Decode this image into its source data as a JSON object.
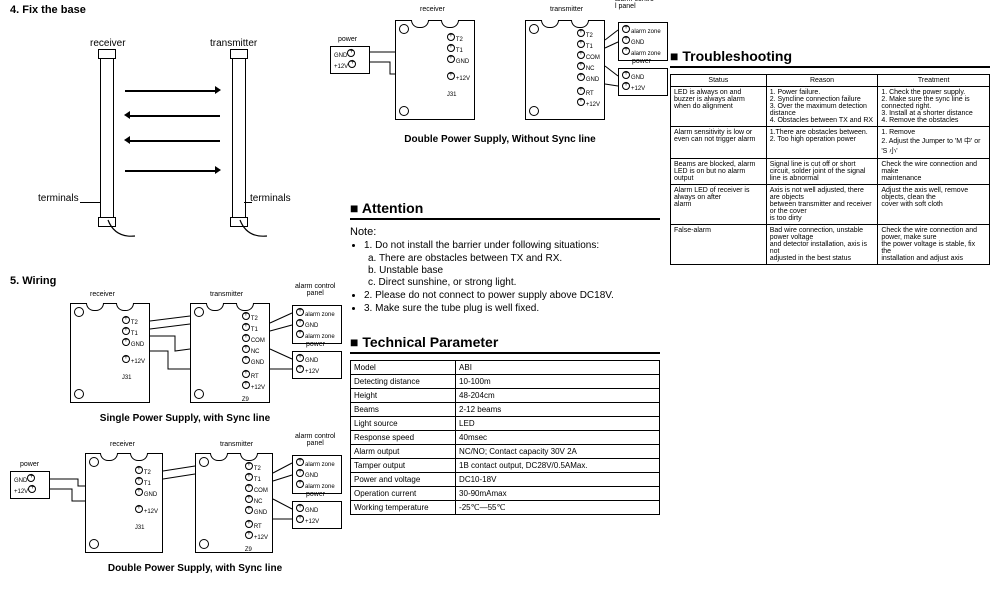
{
  "left": {
    "sec4_title": "4. Fix the base",
    "receiver": "receiver",
    "transmitter": "transmitter",
    "terminals": "terminals",
    "sec5_title": "5. Wiring",
    "cap1": "Single Power Supply, with Sync line",
    "cap2": "Double Power Supply, with Sync line",
    "alarm_control": "alarm control\npanel",
    "power": "power",
    "labels": {
      "t2": "T2",
      "t1": "T1",
      "gnd": "GND",
      "p12v": "+12V",
      "j31": "J31",
      "com": "COM",
      "nc": "NC",
      "rt": "RT",
      "z9": "Z9",
      "alarmzone": "alarm zone"
    }
  },
  "mid": {
    "cap_top": "Double Power Supply,  Without Sync line",
    "receiver": "receiver",
    "transmitter": "transmitter",
    "alarm_panel": "alarm contro\nl panel",
    "power": "power",
    "attention_title": "Attention",
    "note_label": "Note:",
    "notes": [
      "1. Do not install the barrier under following situations:",
      "2. Please do not connect to power supply above DC18V.",
      "3. Make sure the tube plug is well fixed."
    ],
    "subnotes": [
      "a. There are obstacles between TX and RX.",
      "b. Unstable base",
      "c. Direct sunshine, or strong light."
    ],
    "tech_title": "Technical Parameter",
    "params": [
      [
        "Model",
        "ABI"
      ],
      [
        "Detecting distance",
        "10-100m"
      ],
      [
        "Height",
        "48-204cm"
      ],
      [
        "Beams",
        "2-12 beams"
      ],
      [
        "Light source",
        "LED"
      ],
      [
        "Response speed",
        "40msec"
      ],
      [
        "Alarm output",
        "NC/NO; Contact capacity 30V 2A"
      ],
      [
        "Tamper output",
        "1B contact output,  DC28V/0.5AMax."
      ],
      [
        "Power and voltage",
        "DC10-18V"
      ],
      [
        "Operation current",
        "30-90mAmax"
      ],
      [
        "Working temperature",
        "-25℃—55℃"
      ]
    ]
  },
  "right": {
    "trouble_title": "Troubleshooting",
    "headers": [
      "Status",
      "Reason",
      "Treatment"
    ],
    "rows": [
      [
        "LED is always on and buzzer is always alarm when do alignment",
        "1. Power failure.\n2. Syncline connection failure\n3. Over the maximum detection distance\n4. Obstacles between TX and RX",
        "1. Check the power supply.\n2. Make sure the sync line is connected right.\n3. Install at a shorter distance\n4. Remove the obstacles"
      ],
      [
        "Alarm sensitivity is low or even can not trigger alarm",
        "1.There are obstacles between.\n2. Too high operation power",
        "1. Remove\n2. Adjust the Jumper to 'M 中' or 'S 小'"
      ],
      [
        "Beams are blocked, alarm LED is on but no alarm output",
        "Signal line is cut off or short circuit, solder joint of the signal line is abnormal",
        "Check the wire connection and make\nmaintenance"
      ],
      [
        "Alarm LED of receiver is always on after\nalarm",
        "Axis is not well adjusted, there are objects\nbetween transmitter and receiver or the cover\nis too dirty",
        "Adjust the axis well, remove objects, clean the\ncover with soft cloth"
      ],
      [
        "False-alarm",
        "Bad wire connection, unstable power voltage\nand detector installation, axis is not\nadjusted in the best status",
        "Check the wire connection and power, make sure\nthe power voltage is stable, fix the\ninstallation and adjust axis"
      ]
    ]
  },
  "colors": {
    "fg": "#000000",
    "bg": "#ffffff"
  }
}
